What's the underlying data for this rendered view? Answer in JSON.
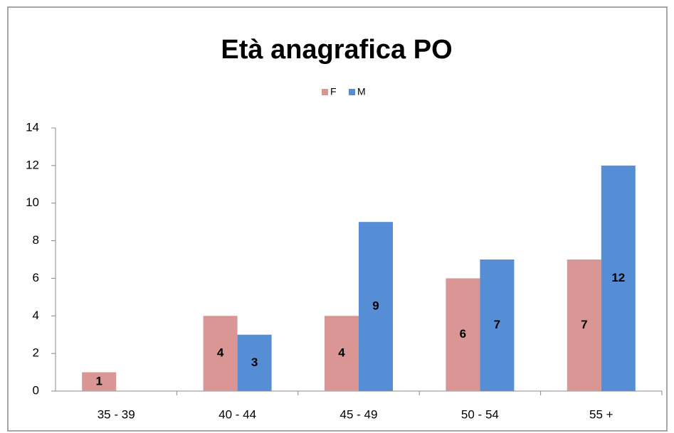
{
  "chart_data": {
    "type": "bar",
    "title": "Età anagrafica PO",
    "categories": [
      "35 - 39",
      "40 - 44",
      "45 - 49",
      "50 - 54",
      "55 +"
    ],
    "series": [
      {
        "name": "F",
        "color": "#d99694",
        "values": [
          1,
          4,
          4,
          6,
          7
        ]
      },
      {
        "name": "M",
        "color": "#558ed5",
        "values": [
          null,
          3,
          9,
          7,
          12
        ]
      }
    ],
    "ylim": [
      0,
      14
    ],
    "yticks": [
      0,
      2,
      4,
      6,
      8,
      10,
      12,
      14
    ],
    "grid": false,
    "legend": "top"
  }
}
